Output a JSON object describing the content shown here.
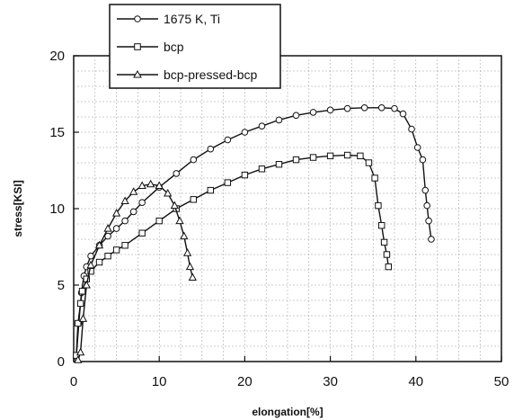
{
  "chart_data": {
    "type": "line",
    "title": "",
    "xlabel": "elongation[%]",
    "ylabel": "stress[KSI]",
    "xlim": [
      0,
      50
    ],
    "ylim": [
      0,
      20
    ],
    "xticks": [
      0,
      10,
      20,
      30,
      40,
      50
    ],
    "yticks": [
      0,
      5,
      10,
      15,
      20
    ],
    "grid": true,
    "legend_position": "top-left",
    "series": [
      {
        "name": "1675 K, Ti",
        "marker": "circle",
        "x": [
          0.3,
          0.6,
          0.9,
          1.2,
          1.5,
          2,
          3,
          4,
          5,
          6,
          7,
          8,
          10,
          12,
          14,
          16,
          18,
          20,
          22,
          24,
          26,
          28,
          30,
          32,
          34,
          36,
          37.5,
          38.5,
          39.5,
          40.2,
          40.8,
          41.1,
          41.3,
          41.5,
          41.8
        ],
        "y": [
          0.3,
          2.5,
          4.5,
          5.6,
          6.2,
          6.9,
          7.6,
          8.2,
          8.7,
          9.2,
          9.8,
          10.4,
          11.4,
          12.3,
          13.2,
          13.9,
          14.5,
          15.0,
          15.4,
          15.8,
          16.1,
          16.3,
          16.45,
          16.55,
          16.6,
          16.6,
          16.55,
          16.2,
          15.2,
          14.0,
          13.2,
          11.2,
          10.2,
          9.2,
          8.0
        ]
      },
      {
        "name": "bcp",
        "marker": "square",
        "x": [
          0.3,
          0.5,
          0.8,
          1.0,
          1.5,
          2,
          3,
          4,
          5,
          6,
          8,
          10,
          12,
          14,
          16,
          18,
          20,
          22,
          24,
          26,
          28,
          30,
          32,
          33.5,
          34.5,
          35.2,
          35.6,
          36.0,
          36.3,
          36.6,
          36.8
        ],
        "y": [
          0.4,
          2.5,
          3.8,
          4.6,
          5.4,
          5.9,
          6.5,
          6.9,
          7.3,
          7.6,
          8.4,
          9.2,
          10.0,
          10.6,
          11.2,
          11.7,
          12.2,
          12.6,
          12.9,
          13.2,
          13.35,
          13.45,
          13.5,
          13.45,
          13.0,
          12.0,
          10.2,
          8.9,
          7.8,
          7.0,
          6.2
        ]
      },
      {
        "name": "bcp-pressed-bcp",
        "marker": "triangle",
        "x": [
          0.5,
          0.8,
          1.1,
          1.5,
          2,
          3,
          4,
          5,
          6,
          7,
          8,
          9,
          10,
          11,
          11.8,
          12.4,
          12.9,
          13.3,
          13.6,
          13.9
        ],
        "y": [
          0.1,
          0.6,
          2.8,
          5.0,
          6.3,
          7.6,
          8.7,
          9.7,
          10.5,
          11.1,
          11.5,
          11.6,
          11.5,
          11.0,
          10.2,
          9.2,
          8.2,
          7.1,
          6.2,
          5.5
        ]
      }
    ]
  }
}
